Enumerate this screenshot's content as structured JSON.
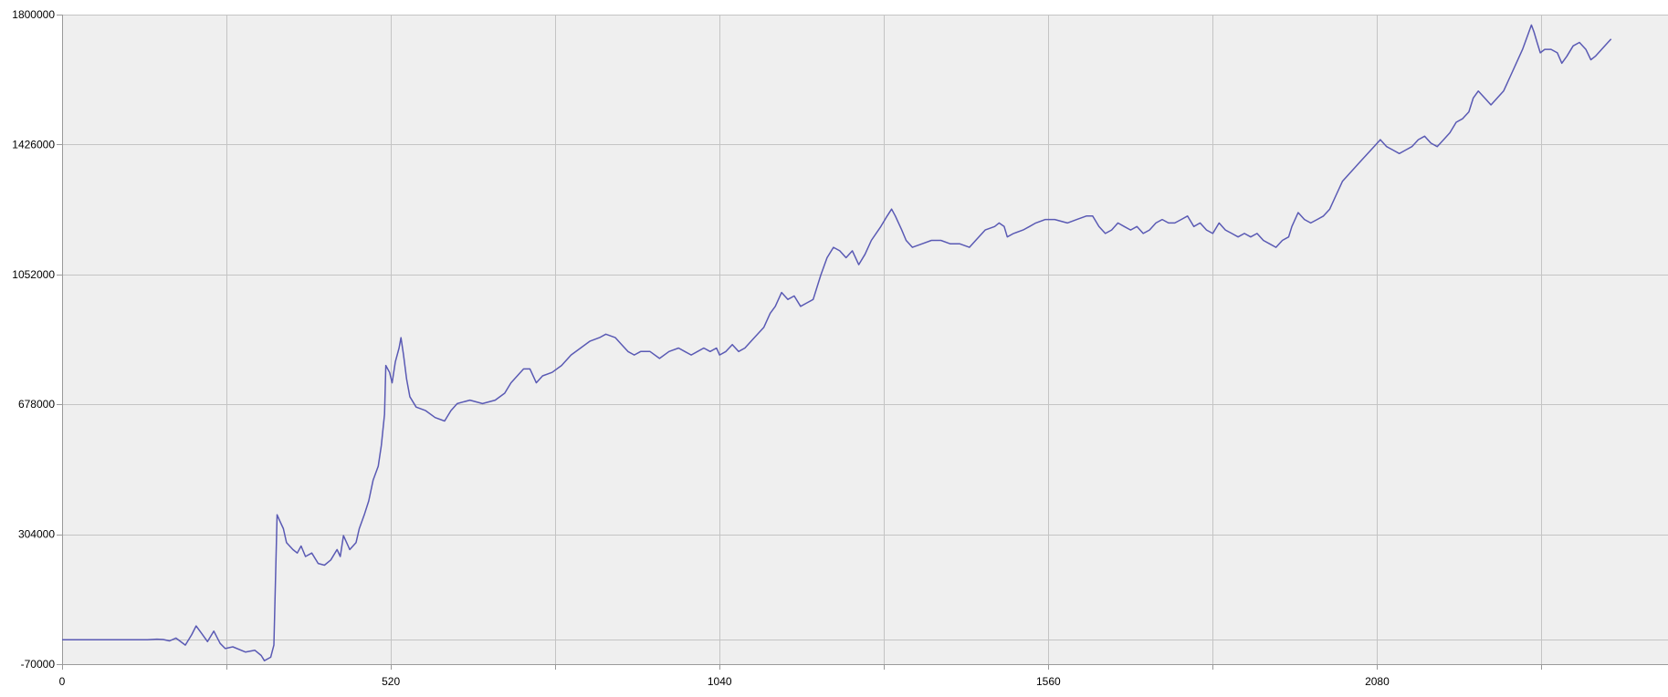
{
  "colors": {
    "background": "#ffffff",
    "plot_background": "#efefef",
    "grid": "#c4c4c4",
    "axis": "#9a9a9a",
    "series": "#5a5ab4"
  },
  "chart_data": {
    "type": "line",
    "title": "",
    "xlabel": "",
    "ylabel": "",
    "grid": true,
    "legend": "none",
    "xlim": [
      0,
      2540
    ],
    "ylim": [
      -70000,
      1800000
    ],
    "x_ticks": [
      0,
      520,
      1040,
      1560,
      2080
    ],
    "x_tick_labels": [
      "0",
      "520",
      "1040",
      "1560",
      "2080"
    ],
    "x_minor_gridlines": [
      260,
      780,
      1300,
      1820,
      2340
    ],
    "y_ticks": [
      -70000,
      304000,
      678000,
      1052000,
      1426000,
      1800000
    ],
    "y_tick_labels": [
      "-70000",
      "304000",
      "678000",
      "1052000",
      "1426000",
      "1800000"
    ],
    "y_minor_gridlines": [
      0
    ],
    "series": [
      {
        "name": "",
        "points": [
          [
            0,
            0
          ],
          [
            60,
            0
          ],
          [
            120,
            0
          ],
          [
            135,
            0
          ],
          [
            150,
            2000
          ],
          [
            160,
            1000
          ],
          [
            170,
            -3000
          ],
          [
            180,
            5000
          ],
          [
            195,
            -15000
          ],
          [
            205,
            15000
          ],
          [
            212,
            40000
          ],
          [
            220,
            20000
          ],
          [
            230,
            -5000
          ],
          [
            240,
            25000
          ],
          [
            250,
            -10000
          ],
          [
            258,
            -25000
          ],
          [
            270,
            -20000
          ],
          [
            290,
            -35000
          ],
          [
            305,
            -30000
          ],
          [
            315,
            -45000
          ],
          [
            320,
            -60000
          ],
          [
            330,
            -50000
          ],
          [
            335,
            -15000
          ],
          [
            340,
            360000
          ],
          [
            345,
            340000
          ],
          [
            350,
            320000
          ],
          [
            355,
            280000
          ],
          [
            365,
            260000
          ],
          [
            372,
            250000
          ],
          [
            378,
            270000
          ],
          [
            385,
            240000
          ],
          [
            395,
            250000
          ],
          [
            405,
            220000
          ],
          [
            415,
            215000
          ],
          [
            425,
            230000
          ],
          [
            435,
            260000
          ],
          [
            440,
            240000
          ],
          [
            445,
            300000
          ],
          [
            455,
            260000
          ],
          [
            465,
            280000
          ],
          [
            470,
            320000
          ],
          [
            478,
            360000
          ],
          [
            485,
            400000
          ],
          [
            492,
            460000
          ],
          [
            500,
            500000
          ],
          [
            505,
            560000
          ],
          [
            510,
            650000
          ],
          [
            512,
            790000
          ],
          [
            518,
            770000
          ],
          [
            522,
            740000
          ],
          [
            527,
            800000
          ],
          [
            533,
            840000
          ],
          [
            536,
            870000
          ],
          [
            540,
            820000
          ],
          [
            545,
            750000
          ],
          [
            550,
            700000
          ],
          [
            560,
            670000
          ],
          [
            575,
            660000
          ],
          [
            590,
            640000
          ],
          [
            605,
            630000
          ],
          [
            615,
            660000
          ],
          [
            625,
            680000
          ],
          [
            645,
            690000
          ],
          [
            665,
            680000
          ],
          [
            685,
            690000
          ],
          [
            700,
            710000
          ],
          [
            710,
            740000
          ],
          [
            720,
            760000
          ],
          [
            730,
            780000
          ],
          [
            740,
            780000
          ],
          [
            750,
            740000
          ],
          [
            760,
            760000
          ],
          [
            775,
            770000
          ],
          [
            790,
            790000
          ],
          [
            805,
            820000
          ],
          [
            820,
            840000
          ],
          [
            835,
            860000
          ],
          [
            850,
            870000
          ],
          [
            860,
            880000
          ],
          [
            875,
            870000
          ],
          [
            885,
            850000
          ],
          [
            895,
            830000
          ],
          [
            905,
            820000
          ],
          [
            915,
            830000
          ],
          [
            930,
            830000
          ],
          [
            945,
            810000
          ],
          [
            960,
            830000
          ],
          [
            975,
            840000
          ],
          [
            985,
            830000
          ],
          [
            995,
            820000
          ],
          [
            1005,
            830000
          ],
          [
            1015,
            840000
          ],
          [
            1025,
            830000
          ],
          [
            1035,
            840000
          ],
          [
            1040,
            820000
          ],
          [
            1050,
            830000
          ],
          [
            1060,
            850000
          ],
          [
            1070,
            830000
          ],
          [
            1080,
            840000
          ],
          [
            1090,
            860000
          ],
          [
            1100,
            880000
          ],
          [
            1110,
            900000
          ],
          [
            1120,
            940000
          ],
          [
            1128,
            960000
          ],
          [
            1138,
            1000000
          ],
          [
            1148,
            980000
          ],
          [
            1158,
            990000
          ],
          [
            1168,
            960000
          ],
          [
            1178,
            970000
          ],
          [
            1188,
            980000
          ],
          [
            1200,
            1050000
          ],
          [
            1210,
            1100000
          ],
          [
            1220,
            1130000
          ],
          [
            1230,
            1120000
          ],
          [
            1240,
            1100000
          ],
          [
            1250,
            1120000
          ],
          [
            1260,
            1080000
          ],
          [
            1270,
            1110000
          ],
          [
            1280,
            1150000
          ],
          [
            1295,
            1190000
          ],
          [
            1305,
            1220000
          ],
          [
            1312,
            1240000
          ],
          [
            1318,
            1220000
          ],
          [
            1328,
            1180000
          ],
          [
            1335,
            1150000
          ],
          [
            1345,
            1130000
          ],
          [
            1360,
            1140000
          ],
          [
            1375,
            1150000
          ],
          [
            1390,
            1150000
          ],
          [
            1405,
            1140000
          ],
          [
            1420,
            1140000
          ],
          [
            1435,
            1130000
          ],
          [
            1445,
            1150000
          ],
          [
            1460,
            1180000
          ],
          [
            1475,
            1190000
          ],
          [
            1482,
            1200000
          ],
          [
            1490,
            1190000
          ],
          [
            1495,
            1160000
          ],
          [
            1505,
            1170000
          ],
          [
            1520,
            1180000
          ],
          [
            1530,
            1190000
          ],
          [
            1540,
            1200000
          ],
          [
            1555,
            1210000
          ],
          [
            1570,
            1210000
          ],
          [
            1590,
            1200000
          ],
          [
            1605,
            1210000
          ],
          [
            1620,
            1220000
          ],
          [
            1630,
            1220000
          ],
          [
            1640,
            1190000
          ],
          [
            1650,
            1170000
          ],
          [
            1660,
            1180000
          ],
          [
            1670,
            1200000
          ],
          [
            1680,
            1190000
          ],
          [
            1690,
            1180000
          ],
          [
            1700,
            1190000
          ],
          [
            1710,
            1170000
          ],
          [
            1720,
            1180000
          ],
          [
            1730,
            1200000
          ],
          [
            1740,
            1210000
          ],
          [
            1750,
            1200000
          ],
          [
            1760,
            1200000
          ],
          [
            1770,
            1210000
          ],
          [
            1780,
            1220000
          ],
          [
            1790,
            1190000
          ],
          [
            1800,
            1200000
          ],
          [
            1810,
            1180000
          ],
          [
            1820,
            1170000
          ],
          [
            1830,
            1200000
          ],
          [
            1840,
            1180000
          ],
          [
            1850,
            1170000
          ],
          [
            1860,
            1160000
          ],
          [
            1870,
            1170000
          ],
          [
            1880,
            1160000
          ],
          [
            1890,
            1170000
          ],
          [
            1900,
            1150000
          ],
          [
            1910,
            1140000
          ],
          [
            1920,
            1130000
          ],
          [
            1930,
            1150000
          ],
          [
            1940,
            1160000
          ],
          [
            1945,
            1190000
          ],
          [
            1955,
            1230000
          ],
          [
            1965,
            1210000
          ],
          [
            1975,
            1200000
          ],
          [
            1985,
            1210000
          ],
          [
            1995,
            1220000
          ],
          [
            2005,
            1240000
          ],
          [
            2015,
            1280000
          ],
          [
            2025,
            1320000
          ],
          [
            2035,
            1340000
          ],
          [
            2045,
            1360000
          ],
          [
            2055,
            1380000
          ],
          [
            2065,
            1400000
          ],
          [
            2075,
            1420000
          ],
          [
            2085,
            1440000
          ],
          [
            2095,
            1420000
          ],
          [
            2105,
            1410000
          ],
          [
            2115,
            1400000
          ],
          [
            2125,
            1410000
          ],
          [
            2135,
            1420000
          ],
          [
            2145,
            1440000
          ],
          [
            2155,
            1450000
          ],
          [
            2165,
            1430000
          ],
          [
            2175,
            1420000
          ],
          [
            2185,
            1440000
          ],
          [
            2195,
            1460000
          ],
          [
            2205,
            1490000
          ],
          [
            2215,
            1500000
          ],
          [
            2225,
            1520000
          ],
          [
            2232,
            1560000
          ],
          [
            2240,
            1580000
          ],
          [
            2250,
            1560000
          ],
          [
            2260,
            1540000
          ],
          [
            2270,
            1560000
          ],
          [
            2280,
            1580000
          ],
          [
            2290,
            1620000
          ],
          [
            2300,
            1660000
          ],
          [
            2310,
            1700000
          ],
          [
            2318,
            1740000
          ],
          [
            2324,
            1770000
          ],
          [
            2328,
            1750000
          ],
          [
            2333,
            1720000
          ],
          [
            2338,
            1690000
          ],
          [
            2345,
            1700000
          ],
          [
            2355,
            1700000
          ],
          [
            2365,
            1690000
          ],
          [
            2372,
            1660000
          ],
          [
            2380,
            1680000
          ],
          [
            2390,
            1710000
          ],
          [
            2400,
            1720000
          ],
          [
            2410,
            1700000
          ],
          [
            2418,
            1670000
          ],
          [
            2425,
            1680000
          ],
          [
            2435,
            1700000
          ],
          [
            2445,
            1720000
          ],
          [
            2450,
            1730000
          ]
        ]
      }
    ]
  }
}
